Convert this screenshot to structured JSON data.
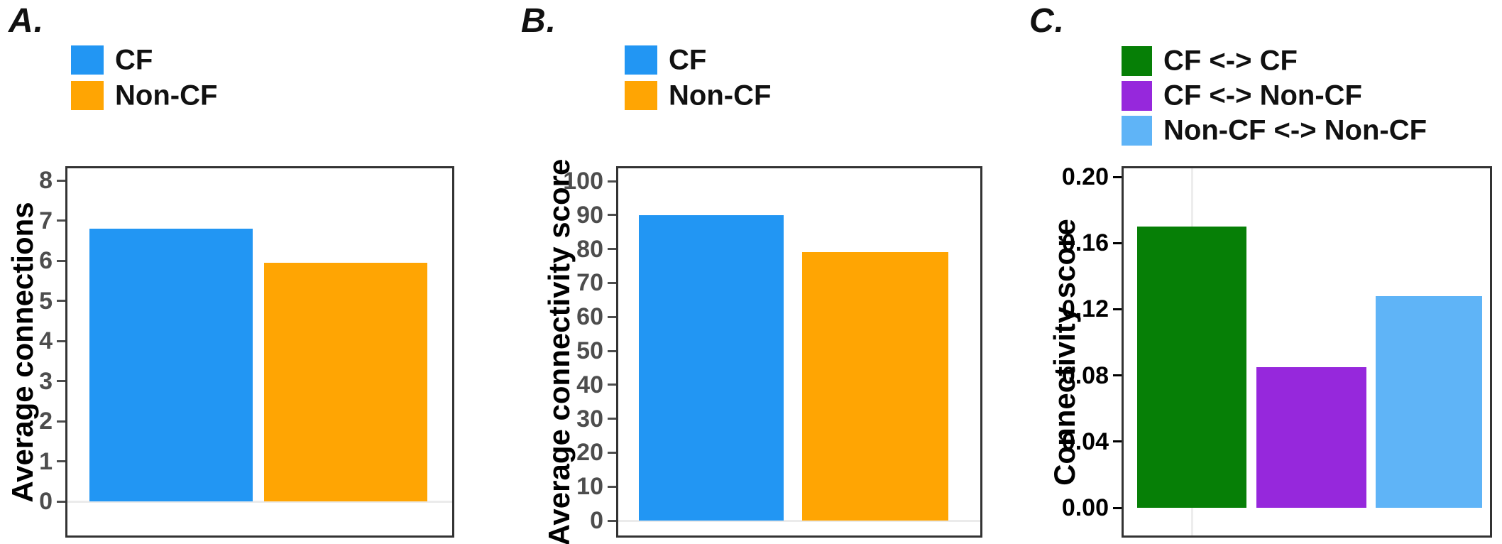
{
  "panels": [
    {
      "label": "A.",
      "ylabel": "Average connections",
      "legend": [
        {
          "label": "CF",
          "color": "#2296F3"
        },
        {
          "label": "Non-CF",
          "color": "#FFA503"
        }
      ],
      "yticks": [
        "8",
        "7",
        "6",
        "5",
        "4",
        "3",
        "2",
        "1",
        "0"
      ],
      "ymax": 8,
      "bars": [
        {
          "name": "CF",
          "value": 6.8,
          "color": "#2296F3"
        },
        {
          "name": "Non-CF",
          "value": 5.95,
          "color": "#FFA503"
        }
      ]
    },
    {
      "label": "B.",
      "ylabel": "Average connectivity score",
      "legend": [
        {
          "label": "CF",
          "color": "#2296F3"
        },
        {
          "label": "Non-CF",
          "color": "#FFA503"
        }
      ],
      "yticks": [
        "100",
        "90",
        "80",
        "70",
        "60",
        "50",
        "40",
        "30",
        "20",
        "10",
        "0"
      ],
      "ymax": 100,
      "bars": [
        {
          "name": "CF",
          "value": 90,
          "color": "#2296F3"
        },
        {
          "name": "Non-CF",
          "value": 79,
          "color": "#FFA503"
        }
      ]
    },
    {
      "label": "C.",
      "ylabel": "Connectivity score",
      "legend": [
        {
          "label": "CF <-> CF",
          "color": "#067F06"
        },
        {
          "label": "CF <-> Non-CF",
          "color": "#9628DC"
        },
        {
          "label": "Non-CF <-> Non-CF",
          "color": "#5FB4F7"
        }
      ],
      "yticks": [
        "0.20",
        "0.16",
        "0.12",
        "0.08",
        "0.04",
        "0.00"
      ],
      "ymax": 0.2,
      "bars": [
        {
          "name": "CF <-> CF",
          "value": 0.17,
          "color": "#067F06"
        },
        {
          "name": "CF <-> Non-CF",
          "value": 0.085,
          "color": "#9628DC"
        },
        {
          "name": "Non-CF <-> Non-CF",
          "value": 0.128,
          "color": "#5FB4F7"
        }
      ]
    }
  ],
  "chart_data": [
    {
      "type": "bar",
      "title": "A.",
      "categories": [
        "CF",
        "Non-CF"
      ],
      "values": [
        6.8,
        5.95
      ],
      "colors": [
        "#2296F3",
        "#FFA503"
      ],
      "xlabel": "",
      "ylabel": "Average connections",
      "ylim": [
        0,
        8
      ],
      "yticks": [
        0,
        1,
        2,
        3,
        4,
        5,
        6,
        7,
        8
      ],
      "legend": [
        "CF",
        "Non-CF"
      ],
      "legend_position": "top-left",
      "grid": "off"
    },
    {
      "type": "bar",
      "title": "B.",
      "categories": [
        "CF",
        "Non-CF"
      ],
      "values": [
        90,
        79
      ],
      "colors": [
        "#2296F3",
        "#FFA503"
      ],
      "xlabel": "",
      "ylabel": "Average connectivity score",
      "ylim": [
        0,
        100
      ],
      "yticks": [
        0,
        10,
        20,
        30,
        40,
        50,
        60,
        70,
        80,
        90,
        100
      ],
      "legend": [
        "CF",
        "Non-CF"
      ],
      "legend_position": "top-left",
      "grid": "off"
    },
    {
      "type": "bar",
      "title": "C.",
      "categories": [
        "CF <-> CF",
        "CF <-> Non-CF",
        "Non-CF <-> Non-CF"
      ],
      "values": [
        0.17,
        0.085,
        0.128
      ],
      "colors": [
        "#067F06",
        "#9628DC",
        "#5FB4F7"
      ],
      "xlabel": "",
      "ylabel": "Connectivity score",
      "ylim": [
        0,
        0.2
      ],
      "yticks": [
        0.0,
        0.04,
        0.08,
        0.12,
        0.16,
        0.2
      ],
      "legend": [
        "CF <-> CF",
        "CF <-> Non-CF",
        "Non-CF <-> Non-CF"
      ],
      "legend_position": "top-left",
      "grid": "off"
    }
  ]
}
